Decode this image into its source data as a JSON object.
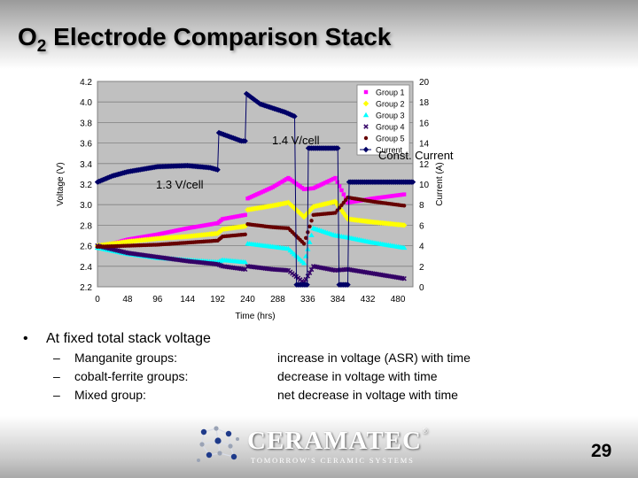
{
  "slide": {
    "title_main": "O",
    "title_sub": "2",
    "title_rest": " Electrode Comparison Stack",
    "page_number": "29"
  },
  "bullets": {
    "main": "At fixed total stack voltage",
    "bullet_symbol": "•",
    "dash_symbol": "–",
    "items": [
      {
        "label": "Manganite groups:",
        "desc": "increase in voltage (ASR) with time"
      },
      {
        "label": "cobalt-ferrite groups:",
        "desc": "decrease in voltage with time"
      },
      {
        "label": "Mixed group:",
        "desc": "net decrease in voltage with time"
      }
    ]
  },
  "logo": {
    "name": "CERAMATEC",
    "reg": "®",
    "tagline": "TOMORROW'S CERAMIC SYSTEMS"
  },
  "chart_data": {
    "type": "scatter",
    "xlabel": "Time (hrs)",
    "ylabel": "Voltage (V)",
    "y2label": "Current (A)",
    "xlim": [
      0,
      504
    ],
    "ylim": [
      2.2,
      4.2
    ],
    "y2lim": [
      0,
      20
    ],
    "xticks": [
      "0",
      "48",
      "96",
      "144",
      "192",
      "240",
      "288",
      "336",
      "384",
      "432",
      "480"
    ],
    "yticks": [
      "2.2",
      "2.4",
      "2.6",
      "2.8",
      "3.0",
      "3.2",
      "3.4",
      "3.6",
      "3.8",
      "4.0",
      "4.2"
    ],
    "y2ticks": [
      "0",
      "2",
      "4",
      "6",
      "8",
      "10",
      "12",
      "14",
      "16",
      "18",
      "20"
    ],
    "grid": true,
    "legend_position": "top-right",
    "annotations": [
      "1.3 V/cell",
      "1.4 V/cell",
      "Const. Current"
    ],
    "series": [
      {
        "name": "Group 1",
        "color": "#ff00ff",
        "marker": "square",
        "points": [
          [
            0,
            2.58
          ],
          [
            48,
            2.66
          ],
          [
            96,
            2.71
          ],
          [
            144,
            2.77
          ],
          [
            192,
            2.82
          ],
          [
            200,
            2.86
          ],
          [
            236,
            2.9
          ],
          [
            240,
            3.06
          ],
          [
            280,
            3.17
          ],
          [
            305,
            3.26
          ],
          [
            330,
            3.15
          ],
          [
            345,
            3.16
          ],
          [
            380,
            3.26
          ],
          [
            400,
            3.02
          ],
          [
            440,
            3.06
          ],
          [
            490,
            3.1
          ]
        ]
      },
      {
        "name": "Group 2",
        "color": "#ffff00",
        "marker": "diamond",
        "points": [
          [
            0,
            2.6
          ],
          [
            48,
            2.64
          ],
          [
            96,
            2.67
          ],
          [
            144,
            2.69
          ],
          [
            192,
            2.72
          ],
          [
            200,
            2.76
          ],
          [
            236,
            2.79
          ],
          [
            240,
            2.95
          ],
          [
            280,
            2.99
          ],
          [
            305,
            3.02
          ],
          [
            330,
            2.88
          ],
          [
            345,
            2.98
          ],
          [
            380,
            3.03
          ],
          [
            400,
            2.86
          ],
          [
            440,
            2.83
          ],
          [
            490,
            2.8
          ]
        ]
      },
      {
        "name": "Group 3",
        "color": "#00ffff",
        "marker": "triangle",
        "points": [
          [
            0,
            2.58
          ],
          [
            48,
            2.52
          ],
          [
            96,
            2.48
          ],
          [
            144,
            2.46
          ],
          [
            192,
            2.44
          ],
          [
            200,
            2.46
          ],
          [
            236,
            2.44
          ],
          [
            240,
            2.62
          ],
          [
            280,
            2.59
          ],
          [
            305,
            2.57
          ],
          [
            330,
            2.43
          ],
          [
            345,
            2.77
          ],
          [
            380,
            2.7
          ],
          [
            400,
            2.68
          ],
          [
            440,
            2.63
          ],
          [
            490,
            2.58
          ]
        ]
      },
      {
        "name": "Group 4",
        "color": "#330066",
        "marker": "x",
        "points": [
          [
            0,
            2.6
          ],
          [
            48,
            2.53
          ],
          [
            96,
            2.49
          ],
          [
            144,
            2.45
          ],
          [
            192,
            2.42
          ],
          [
            200,
            2.4
          ],
          [
            236,
            2.37
          ],
          [
            240,
            2.4
          ],
          [
            280,
            2.37
          ],
          [
            305,
            2.36
          ],
          [
            330,
            2.24
          ],
          [
            345,
            2.4
          ],
          [
            380,
            2.36
          ],
          [
            400,
            2.37
          ],
          [
            440,
            2.33
          ],
          [
            490,
            2.28
          ]
        ]
      },
      {
        "name": "Group 5",
        "color": "#660000",
        "marker": "circle",
        "points": [
          [
            0,
            2.59
          ],
          [
            48,
            2.6
          ],
          [
            96,
            2.61
          ],
          [
            144,
            2.63
          ],
          [
            192,
            2.65
          ],
          [
            200,
            2.69
          ],
          [
            236,
            2.71
          ],
          [
            240,
            2.81
          ],
          [
            280,
            2.78
          ],
          [
            305,
            2.77
          ],
          [
            330,
            2.62
          ],
          [
            345,
            2.9
          ],
          [
            380,
            2.92
          ],
          [
            400,
            3.07
          ],
          [
            440,
            3.03
          ],
          [
            490,
            2.99
          ]
        ]
      },
      {
        "name": "Current",
        "color": "#000066",
        "marker": "diamond",
        "axis": "y2",
        "points": [
          [
            0,
            10.2
          ],
          [
            24,
            10.8
          ],
          [
            48,
            11.2
          ],
          [
            96,
            11.7
          ],
          [
            144,
            11.8
          ],
          [
            180,
            11.6
          ],
          [
            192,
            11.4
          ],
          [
            194,
            15.0
          ],
          [
            230,
            14.2
          ],
          [
            236,
            14.2
          ],
          [
            238,
            18.8
          ],
          [
            260,
            17.8
          ],
          [
            300,
            17.0
          ],
          [
            315,
            16.6
          ],
          [
            318,
            0.2
          ],
          [
            335,
            0.2
          ],
          [
            337,
            13.5
          ],
          [
            384,
            13.5
          ],
          [
            386,
            0.2
          ],
          [
            400,
            0.2
          ],
          [
            402,
            10.2
          ],
          [
            504,
            10.2
          ]
        ]
      }
    ]
  }
}
